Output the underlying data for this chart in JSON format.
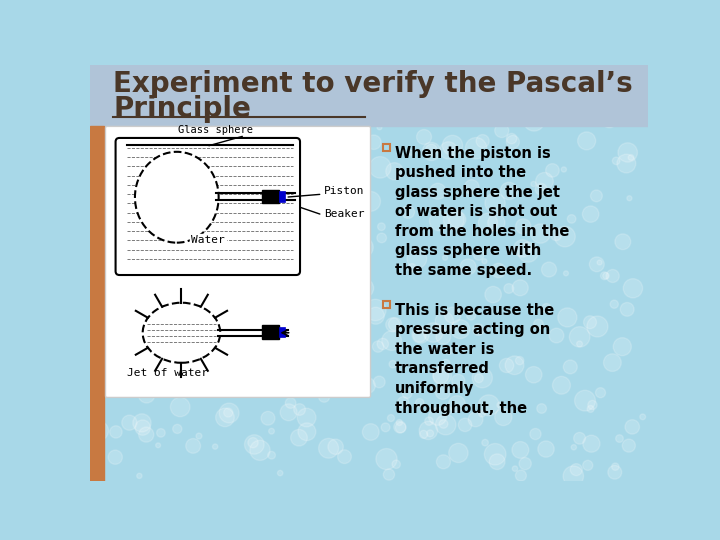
{
  "title_line1": "Experiment to verify the Pascal’s",
  "title_line2": "Principle",
  "title_color": "#4a3728",
  "title_underline_color": "#4a3728",
  "bg_color": "#a8d8e8",
  "header_bar_color": "#b0c4d8",
  "left_accent_color": "#c87941",
  "bullet_color": "#c87941",
  "text_color": "#000000",
  "bullet1": "When the piston is\npushed into the\nglass sphere the jet\nof water is shot out\nfrom the holes in the\nglass sphere with\nthe same speed.",
  "bullet2": "This is because the\npressure acting on\nthe water is\ntransferred\nuniformly\nthroughout, the",
  "diagram_bg": "#ffffff",
  "piston_color": "#000000",
  "piston_blue": "#0000cc",
  "water_line_color": "#555555",
  "label_font": 8,
  "title_font": 20
}
